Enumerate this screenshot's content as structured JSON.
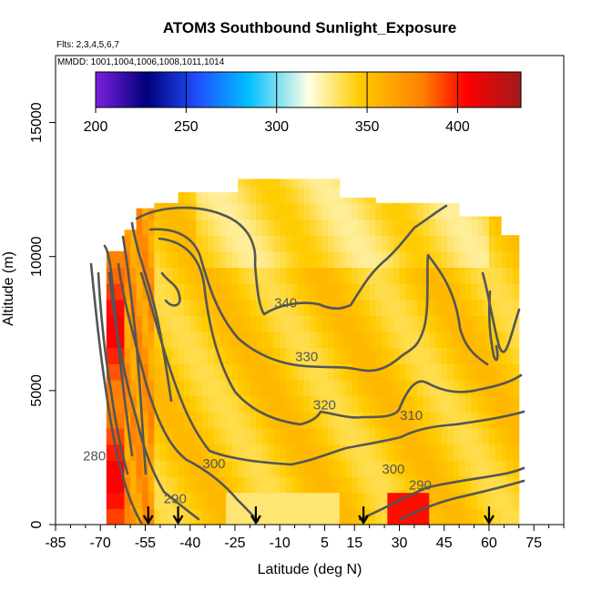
{
  "chart_data": {
    "type": "heatmap",
    "title": "ATOM3 Southbound Sunlight_Exposure",
    "subtitle_flights": "Flts: 2,3,4,5,6,7",
    "subtitle_dates": "MMDD: 1001,1004,1006,1008,1011,1014",
    "xlabel": "Latitude (deg N)",
    "ylabel": "Altitude (m)",
    "xlim": [
      -85,
      85
    ],
    "ylim": [
      0,
      17500
    ],
    "x_ticks": [
      -85,
      -70,
      -55,
      -40,
      -25,
      -10,
      5,
      15,
      30,
      45,
      60,
      75
    ],
    "y_ticks": [
      0,
      5000,
      10000,
      15000
    ],
    "colorbar": {
      "min": 200,
      "max": 435,
      "ticks": [
        200,
        250,
        300,
        350,
        400
      ],
      "colors": [
        "#7a1fe0",
        "#00007a",
        "#1f4fff",
        "#00bfff",
        "#ffffe6",
        "#ffcc00",
        "#ff7f00",
        "#ff0000",
        "#a01a1a"
      ]
    },
    "contour_labels": [
      {
        "text": "340",
        "lat": -8,
        "alt": 8100
      },
      {
        "text": "330",
        "lat": -1,
        "alt": 6100
      },
      {
        "text": "320",
        "lat": 5,
        "alt": 4300
      },
      {
        "text": "310",
        "lat": 34,
        "alt": 3900
      },
      {
        "text": "300",
        "lat": -32,
        "alt": 2100
      },
      {
        "text": "300",
        "lat": 28,
        "alt": 1900
      },
      {
        "text": "290",
        "lat": -45,
        "alt": 800
      },
      {
        "text": "290",
        "lat": 37,
        "alt": 1300
      },
      {
        "text": "280",
        "lat": -72,
        "alt": 2400
      }
    ],
    "profile_markers_lat": [
      -54,
      -44,
      -18,
      18,
      60
    ],
    "coverage": [
      {
        "lat": [
          -68,
          -62
        ],
        "top": 10200
      },
      {
        "lat": [
          -62,
          -58
        ],
        "top": 11000
      },
      {
        "lat": [
          -58,
          -52
        ],
        "top": 11800
      },
      {
        "lat": [
          -52,
          -44
        ],
        "top": 12000
      },
      {
        "lat": [
          -44,
          -34
        ],
        "top": 12400
      },
      {
        "lat": [
          -34,
          -24
        ],
        "top": 12400
      },
      {
        "lat": [
          -24,
          10
        ],
        "top": 12900
      },
      {
        "lat": [
          10,
          22
        ],
        "top": 12200
      },
      {
        "lat": [
          22,
          36
        ],
        "top": 12000
      },
      {
        "lat": [
          36,
          50
        ],
        "top": 12000
      },
      {
        "lat": [
          50,
          64
        ],
        "top": 11500
      },
      {
        "lat": [
          64,
          70
        ],
        "top": 10800
      }
    ]
  }
}
